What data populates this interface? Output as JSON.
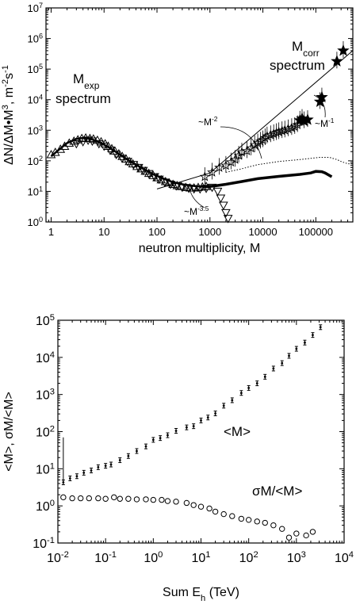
{
  "chart_data": [
    {
      "type": "scatter",
      "xlabel": "neutron multiplicity,   M",
      "ylabel_parts": {
        "main": "ΔN/ΔM•M",
        "sup1": "3",
        "unit": ", m",
        "sup2": "-2",
        "unit2": "s",
        "sup3": "-1"
      },
      "xscale": "log",
      "yscale": "log",
      "xlim": [
        0.8,
        500000
      ],
      "ylim": [
        1,
        10000000
      ],
      "xticks": [
        {
          "value": 1,
          "label": "1"
        },
        {
          "value": 10,
          "label": "10"
        },
        {
          "value": 100,
          "label": "100"
        },
        {
          "value": 1000,
          "label": "1000"
        },
        {
          "value": 10000,
          "label": "10000"
        },
        {
          "value": 100000,
          "label": "100000"
        }
      ],
      "yticks": [
        {
          "value": 1,
          "base": "10",
          "exp": "0"
        },
        {
          "value": 10,
          "base": "10",
          "exp": "1"
        },
        {
          "value": 100,
          "base": "10",
          "exp": "2"
        },
        {
          "value": 1000,
          "base": "10",
          "exp": "3"
        },
        {
          "value": 10000,
          "base": "10",
          "exp": "4"
        },
        {
          "value": 100000,
          "base": "10",
          "exp": "5"
        },
        {
          "value": 1000000,
          "base": "10",
          "exp": "6"
        },
        {
          "value": 10000000,
          "base": "10",
          "exp": "7"
        }
      ],
      "annotations": {
        "mexp": {
          "main": "M",
          "sub": "exp",
          "line2": "spectrum"
        },
        "mcorr": {
          "main": "M",
          "sub": "corr",
          "line2": "spectrum"
        },
        "slope2": {
          "main": "~M",
          "sup": "-2"
        },
        "slope35": {
          "main": "~M",
          "sup": "-3.5"
        },
        "slope1": {
          "main": "~M",
          "sup": "-1"
        }
      },
      "series": [
        {
          "marker": "triangle-up",
          "points": [
            [
              1,
              160
            ],
            [
              1.2,
              190
            ],
            [
              1.5,
              240
            ],
            [
              1.8,
              300
            ],
            [
              2.2,
              380
            ],
            [
              2.7,
              440
            ],
            [
              3.2,
              490
            ],
            [
              3.8,
              540
            ],
            [
              4.5,
              560
            ],
            [
              5.4,
              540
            ],
            [
              6.3,
              520
            ],
            [
              7.5,
              470
            ],
            [
              8.8,
              420
            ],
            [
              10.5,
              360
            ],
            [
              12,
              300
            ],
            [
              14,
              250
            ],
            [
              16,
              210
            ],
            [
              19,
              170
            ],
            [
              22,
              140
            ],
            [
              26,
              115
            ],
            [
              30,
              95
            ],
            [
              35,
              80
            ],
            [
              42,
              66
            ],
            [
              50,
              55
            ],
            [
              60,
              46
            ],
            [
              70,
              39
            ],
            [
              85,
              33
            ],
            [
              100,
              28
            ],
            [
              120,
              24
            ],
            [
              145,
              21
            ],
            [
              170,
              19
            ],
            [
              200,
              17
            ],
            [
              240,
              15.5
            ],
            [
              290,
              14.5
            ],
            [
              350,
              13.5
            ],
            [
              420,
              13
            ],
            [
              500,
              13
            ],
            [
              600,
              13.5
            ],
            [
              720,
              14
            ],
            [
              850,
              14.5
            ]
          ]
        },
        {
          "marker": "triangle-down",
          "points": [
            [
              3,
              360
            ],
            [
              4,
              420
            ],
            [
              5,
              470
            ],
            [
              6,
              440
            ],
            [
              8,
              360
            ],
            [
              10,
              300
            ],
            [
              13,
              220
            ],
            [
              17,
              160
            ],
            [
              22,
              120
            ],
            [
              28,
              95
            ],
            [
              36,
              75
            ],
            [
              45,
              60
            ],
            [
              55,
              48
            ],
            [
              70,
              38
            ],
            [
              90,
              30
            ],
            [
              110,
              25
            ],
            [
              140,
              20
            ],
            [
              180,
              17
            ],
            [
              230,
              15
            ],
            [
              300,
              13.5
            ],
            [
              400,
              12.5
            ],
            [
              500,
              12
            ],
            [
              650,
              12
            ],
            [
              850,
              12.5
            ],
            [
              1100,
              13.5
            ],
            [
              1400,
              10
            ],
            [
              1600,
              6
            ],
            [
              1800,
              3.5
            ],
            [
              2000,
              2
            ],
            [
              2200,
              1.3
            ]
          ]
        },
        {
          "marker": "star-open",
          "points": [
            [
              800,
              30
            ],
            [
              1100,
              42
            ],
            [
              1500,
              60
            ],
            [
              2000,
              70
            ],
            [
              2500,
              90
            ],
            [
              3000,
              110
            ],
            [
              3500,
              150
            ],
            [
              4000,
              190
            ],
            [
              5000,
              210
            ],
            [
              6000,
              260
            ],
            [
              7000,
              330
            ],
            [
              8000,
              380
            ],
            [
              9000,
              430
            ],
            [
              10000,
              480
            ],
            [
              11000,
              560
            ],
            [
              12000,
              640
            ],
            [
              14000,
              700
            ],
            [
              16000,
              760
            ],
            [
              18000,
              820
            ],
            [
              20000,
              880
            ],
            [
              23000,
              950
            ],
            [
              26000,
              1000
            ],
            [
              30000,
              1100
            ],
            [
              35000,
              1200
            ],
            [
              40000,
              1300
            ],
            [
              45000,
              1500
            ]
          ]
        },
        {
          "marker": "star-filled",
          "points": [
            [
              50000,
              2100
            ],
            [
              55000,
              2400
            ],
            [
              60000,
              2000
            ],
            [
              70000,
              2200
            ],
            [
              120000,
              8500
            ],
            [
              130000,
              12000
            ],
            [
              250000,
              180000
            ],
            [
              330000,
              400000
            ]
          ]
        }
      ],
      "fit_curve_mexp": [
        [
          1,
          140
        ],
        [
          1.4,
          230
        ],
        [
          2,
          380
        ],
        [
          3,
          520
        ],
        [
          4,
          560
        ],
        [
          5,
          540
        ],
        [
          7,
          460
        ],
        [
          10,
          340
        ],
        [
          15,
          220
        ],
        [
          20,
          160
        ],
        [
          30,
          100
        ],
        [
          50,
          60
        ],
        [
          80,
          38
        ],
        [
          120,
          28
        ],
        [
          200,
          20
        ],
        [
          300,
          17
        ],
        [
          500,
          15
        ],
        [
          800,
          14
        ]
      ],
      "thick_curve": [
        [
          800,
          14
        ],
        [
          1200,
          15
        ],
        [
          2000,
          17
        ],
        [
          4000,
          21
        ],
        [
          8000,
          26
        ],
        [
          20000,
          31
        ],
        [
          50000,
          36
        ],
        [
          80000,
          40
        ],
        [
          100000,
          45
        ],
        [
          130000,
          44
        ],
        [
          150000,
          40
        ],
        [
          200000,
          30
        ]
      ],
      "dotted_curve": [
        [
          2000,
          42
        ],
        [
          4000,
          55
        ],
        [
          8000,
          75
        ],
        [
          20000,
          95
        ],
        [
          50000,
          110
        ],
        [
          80000,
          120
        ],
        [
          120000,
          130
        ],
        [
          180000,
          130
        ],
        [
          250000,
          110
        ],
        [
          300000,
          95
        ],
        [
          400000,
          80
        ],
        [
          500000,
          80
        ]
      ],
      "power_lines": [
        {
          "slope": -2,
          "from": [
            100,
            12
          ],
          "to": [
            1000,
            40
          ]
        },
        {
          "slope": -1,
          "from": [
            1000,
            40
          ],
          "to": [
            500000,
            400000
          ]
        }
      ]
    },
    {
      "type": "scatter",
      "xlabel_parts": {
        "main": "Sum E",
        "sub": "h",
        "unit": " (TeV)"
      },
      "ylabel": "<M>, σM/<M>",
      "xscale": "log",
      "yscale": "log",
      "xlim": [
        0.01,
        10000
      ],
      "ylim": [
        0.1,
        100000
      ],
      "xticks": [
        {
          "value": 0.01,
          "base": "10",
          "exp": "-2"
        },
        {
          "value": 0.1,
          "base": "10",
          "exp": "-1"
        },
        {
          "value": 1,
          "base": "10",
          "exp": "0"
        },
        {
          "value": 10,
          "base": "10",
          "exp": "1"
        },
        {
          "value": 100,
          "base": "10",
          "exp": "2"
        },
        {
          "value": 1000,
          "base": "10",
          "exp": "3"
        },
        {
          "value": 10000,
          "base": "10",
          "exp": "4"
        }
      ],
      "yticks": [
        {
          "value": 0.1,
          "base": "10",
          "exp": "-1"
        },
        {
          "value": 1,
          "base": "10",
          "exp": "0"
        },
        {
          "value": 10,
          "base": "10",
          "exp": "1"
        },
        {
          "value": 100,
          "base": "10",
          "exp": "2"
        },
        {
          "value": 1000,
          "base": "10",
          "exp": "3"
        },
        {
          "value": 10000,
          "base": "10",
          "exp": "4"
        },
        {
          "value": 100000,
          "base": "10",
          "exp": "5"
        }
      ],
      "series": [
        {
          "name": "<M>",
          "marker": "dot-errorbar",
          "points": [
            [
              0.013,
              4.3
            ],
            [
              0.018,
              5.5
            ],
            [
              0.025,
              6.3
            ],
            [
              0.035,
              7.8
            ],
            [
              0.05,
              9
            ],
            [
              0.07,
              11
            ],
            [
              0.1,
              12
            ],
            [
              0.13,
              13
            ],
            [
              0.2,
              17
            ],
            [
              0.3,
              22
            ],
            [
              0.45,
              30
            ],
            [
              0.7,
              40
            ],
            [
              1,
              60
            ],
            [
              1.4,
              67
            ],
            [
              2,
              80
            ],
            [
              3,
              105
            ],
            [
              5,
              130
            ],
            [
              7,
              140
            ],
            [
              10,
              200
            ],
            [
              14,
              240
            ],
            [
              20,
              310
            ],
            [
              30,
              500
            ],
            [
              45,
              700
            ],
            [
              70,
              1100
            ],
            [
              100,
              1500
            ],
            [
              150,
              2000
            ],
            [
              220,
              3000
            ],
            [
              330,
              5000
            ],
            [
              500,
              7000
            ],
            [
              700,
              11000
            ],
            [
              1000,
              17000
            ],
            [
              1500,
              25000
            ],
            [
              2200,
              40000
            ],
            [
              3200,
              65000
            ]
          ]
        },
        {
          "name": "σM/<M>",
          "marker": "circle-open",
          "points": [
            [
              0.013,
              1.7
            ],
            [
              0.02,
              1.6
            ],
            [
              0.03,
              1.6
            ],
            [
              0.045,
              1.6
            ],
            [
              0.07,
              1.6
            ],
            [
              0.1,
              1.55
            ],
            [
              0.15,
              1.7
            ],
            [
              0.2,
              1.55
            ],
            [
              0.3,
              1.55
            ],
            [
              0.45,
              1.5
            ],
            [
              0.7,
              1.5
            ],
            [
              1,
              1.45
            ],
            [
              1.5,
              1.45
            ],
            [
              2,
              1.35
            ],
            [
              3,
              1.3
            ],
            [
              5,
              1.2
            ],
            [
              7,
              1.05
            ],
            [
              10,
              0.95
            ],
            [
              15,
              0.85
            ],
            [
              20,
              0.7
            ],
            [
              30,
              0.6
            ],
            [
              45,
              0.53
            ],
            [
              70,
              0.45
            ],
            [
              100,
              0.42
            ],
            [
              150,
              0.38
            ],
            [
              220,
              0.35
            ],
            [
              330,
              0.3
            ],
            [
              500,
              0.24
            ],
            [
              700,
              0.14
            ],
            [
              1000,
              0.18
            ],
            [
              1600,
              0.16
            ],
            [
              2200,
              0.2
            ]
          ]
        }
      ],
      "spike": {
        "x": 0.013,
        "y_from": 4.3,
        "y_to": 70
      }
    }
  ]
}
